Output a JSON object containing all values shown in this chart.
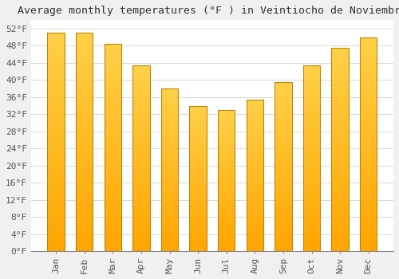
{
  "title": "Average monthly temperatures (°F ) in Veintiocho de Noviembre",
  "months": [
    "Jan",
    "Feb",
    "Mar",
    "Apr",
    "May",
    "Jun",
    "Jul",
    "Aug",
    "Sep",
    "Oct",
    "Nov",
    "Dec"
  ],
  "values": [
    51.0,
    51.0,
    48.5,
    43.5,
    38.0,
    34.0,
    33.0,
    35.5,
    39.5,
    43.5,
    47.5,
    50.0
  ],
  "bar_color": "#FFA500",
  "bar_color_bottom": "#FFD060",
  "bar_edge_color": "#B8860B",
  "background_color": "#F0F0F0",
  "plot_bg_color": "#FFFFFF",
  "grid_color": "#D8D8D8",
  "ylim": [
    0,
    54
  ],
  "ytick_step": 4,
  "title_fontsize": 9.5,
  "tick_fontsize": 8,
  "font_family": "monospace"
}
